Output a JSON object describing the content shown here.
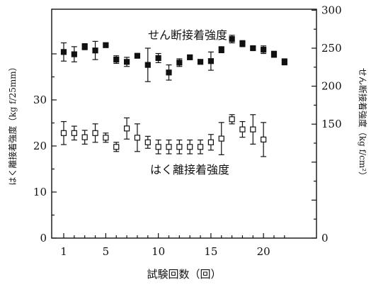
{
  "chart_data": {
    "type": "scatter",
    "title": "",
    "xlabel": "試験回数（回）",
    "ylabel_left": "はく離接着強度（kg f/25mm）",
    "ylabel_right": "せん断接着強度（kg f/cm²）",
    "xlim": [
      0,
      23
    ],
    "ylim_left": [
      0,
      40
    ],
    "ylim_right": [
      0,
      300
    ],
    "x_ticks": [
      1,
      5,
      10,
      15,
      20
    ],
    "y_ticks_left": [
      0,
      10,
      20,
      30
    ],
    "y_ticks_right": [
      0,
      150,
      200,
      250,
      300
    ],
    "grid": false,
    "legend": "none",
    "series": [
      {
        "name": "せん断接着強度",
        "axis": "right",
        "marker": "filled-square",
        "x": [
          1,
          2,
          3,
          4,
          5,
          6,
          7,
          8,
          9,
          10,
          11,
          12,
          13,
          14,
          15,
          16,
          17,
          18,
          19,
          20,
          21,
          22
        ],
        "y": [
          245,
          242,
          252,
          247,
          254,
          235,
          232,
          240,
          228,
          237,
          218,
          231,
          238,
          232,
          233,
          248,
          262,
          256,
          250,
          248,
          242,
          232
        ],
        "err": [
          12,
          10,
          4,
          12,
          3,
          5,
          6,
          2,
          22,
          6,
          10,
          5,
          2,
          2,
          12,
          4,
          5,
          4,
          2,
          5,
          4,
          4
        ]
      },
      {
        "name": "はく離接着強度",
        "axis": "left",
        "marker": "open-square",
        "x": [
          1,
          2,
          3,
          4,
          5,
          6,
          7,
          8,
          9,
          10,
          11,
          12,
          13,
          14,
          15,
          16,
          17,
          18,
          19,
          20
        ],
        "y": [
          22.8,
          22.8,
          21.9,
          22.8,
          21.8,
          19.8,
          23.8,
          21.8,
          20.8,
          19.8,
          19.8,
          19.8,
          19.8,
          19.8,
          20.8,
          21.6,
          25.8,
          23.6,
          23.6,
          21.4
        ],
        "err": [
          2.5,
          1.5,
          1.5,
          2.0,
          1.0,
          1.0,
          2.3,
          3.0,
          1.3,
          1.5,
          1.5,
          1.5,
          1.5,
          1.5,
          1.7,
          3.5,
          1.0,
          1.7,
          3.2,
          3.7
        ]
      }
    ]
  }
}
